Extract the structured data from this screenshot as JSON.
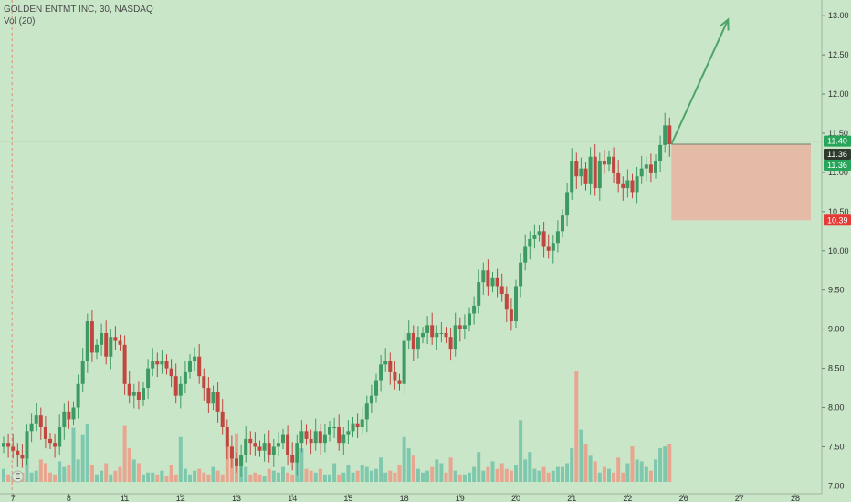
{
  "legend": {
    "symbol_line": "GOLDEN ENTMT INC, 30, NASDAQ",
    "volume_line": "Vol (20)"
  },
  "colors": {
    "background": "#c9e6c8",
    "up": "#3d9a63",
    "down": "#c0463f",
    "vol_up": "#7fc8ae",
    "vol_down": "#e8a590",
    "arrow": "#4fa46a",
    "stop_zone": "#e8b3a0",
    "tag_green": "#27a55a",
    "tag_dark": "#2d3b2d",
    "tag_red": "#e53935"
  },
  "chart_data": {
    "type": "candlestick",
    "title": "",
    "xlabel": "",
    "ylabel": "",
    "ylim": [
      6.9,
      13.2
    ],
    "y_ticks": [
      7.0,
      7.5,
      8.0,
      8.5,
      9.0,
      9.5,
      10.0,
      10.5,
      11.0,
      11.5,
      12.0,
      12.5,
      13.0
    ],
    "y_tick_labels": [
      "7.00",
      "7.50",
      "8.00",
      "8.50",
      "9.00",
      "9.50",
      "10.00",
      "10.50",
      "11.00",
      "11.50",
      "12.00",
      "12.50",
      "13.00"
    ],
    "x_tick_labels": [
      "7",
      "8",
      "11",
      "12",
      "13",
      "14",
      "15",
      "18",
      "19",
      "20",
      "21",
      "22",
      "26",
      "27",
      "28"
    ],
    "x_tick_index": [
      2,
      14,
      26,
      38,
      50,
      62,
      74,
      86,
      98,
      110,
      122,
      134,
      146,
      158,
      170
    ],
    "closes": [
      7.55,
      7.5,
      7.45,
      7.4,
      7.35,
      7.7,
      7.8,
      7.9,
      7.75,
      7.6,
      7.55,
      7.5,
      7.75,
      7.95,
      7.85,
      8.0,
      8.3,
      8.6,
      9.1,
      8.7,
      8.8,
      8.95,
      8.65,
      8.9,
      8.85,
      8.8,
      8.3,
      8.15,
      8.2,
      8.1,
      8.25,
      8.5,
      8.6,
      8.55,
      8.6,
      8.5,
      8.4,
      8.15,
      8.3,
      8.45,
      8.6,
      8.65,
      8.4,
      8.25,
      8.05,
      8.2,
      7.95,
      7.75,
      7.5,
      7.35,
      7.25,
      7.4,
      7.6,
      7.55,
      7.5,
      7.45,
      7.55,
      7.4,
      7.5,
      7.55,
      7.65,
      7.4,
      7.3,
      7.55,
      7.7,
      7.6,
      7.55,
      7.7,
      7.55,
      7.65,
      7.75,
      7.75,
      7.55,
      7.65,
      7.7,
      7.8,
      7.75,
      7.85,
      8.05,
      8.15,
      8.35,
      8.55,
      8.6,
      8.45,
      8.35,
      8.3,
      8.85,
      8.95,
      8.75,
      8.9,
      8.95,
      9.05,
      8.9,
      8.95,
      8.95,
      8.9,
      8.75,
      9.05,
      9.0,
      9.05,
      9.2,
      9.3,
      9.6,
      9.75,
      9.55,
      9.65,
      9.55,
      9.45,
      9.25,
      9.1,
      9.55,
      9.85,
      10.05,
      10.15,
      10.2,
      10.25,
      10.05,
      10.0,
      10.1,
      10.25,
      10.45,
      10.75,
      11.15,
      10.95,
      11.05,
      10.85,
      11.2,
      10.8,
      11.15,
      11.1,
      11.2,
      11.0,
      10.85,
      10.8,
      10.9,
      10.75,
      10.95,
      11.05,
      11.1,
      11.0,
      11.15,
      11.35,
      11.6,
      11.36
    ],
    "volumes": [
      7,
      4,
      3,
      4,
      5,
      16,
      5,
      6,
      12,
      10,
      5,
      4,
      11,
      8,
      9,
      29,
      12,
      25,
      31,
      9,
      4,
      6,
      10,
      4,
      6,
      8,
      30,
      18,
      12,
      10,
      4,
      5,
      5,
      4,
      6,
      3,
      9,
      4,
      24,
      7,
      4,
      6,
      7,
      5,
      4,
      8,
      6,
      4,
      20,
      19,
      26,
      14,
      8,
      4,
      5,
      4,
      3,
      7,
      6,
      5,
      8,
      5,
      4,
      12,
      18,
      7,
      6,
      5,
      7,
      4,
      4,
      10,
      4,
      5,
      9,
      5,
      6,
      9,
      8,
      6,
      7,
      13,
      5,
      6,
      5,
      9,
      24,
      18,
      14,
      7,
      5,
      6,
      8,
      12,
      10,
      5,
      13,
      6,
      4,
      4,
      5,
      8,
      16,
      6,
      8,
      11,
      7,
      10,
      7,
      6,
      9,
      33,
      12,
      16,
      7,
      6,
      8,
      5,
      6,
      8,
      8,
      10,
      18,
      59,
      28,
      20,
      14,
      11,
      5,
      8,
      7,
      5,
      13,
      5,
      10,
      19,
      12,
      11,
      8,
      6,
      12,
      18,
      19,
      20
    ]
  },
  "price_tags": {
    "last_a": "11.40",
    "last_b": "11.36",
    "last_c": "11.36",
    "stop": "10.39"
  },
  "trade": {
    "entry": 11.36,
    "stop": 10.39,
    "target": 12.95,
    "horizontal_line": 11.4
  }
}
